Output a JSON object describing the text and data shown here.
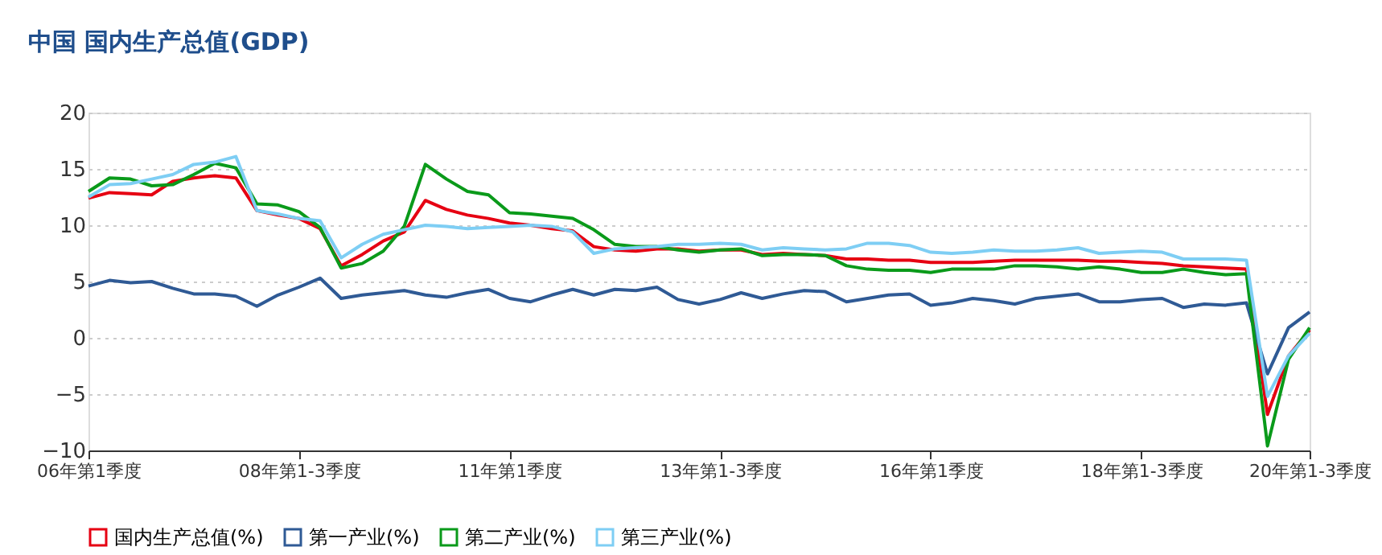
{
  "chart_data": {
    "type": "line",
    "title": "中国 国内生产总值(GDP)",
    "categories": [
      "06年第1季度",
      null,
      null,
      null,
      null,
      null,
      null,
      null,
      null,
      null,
      "08年第1-3季度",
      null,
      null,
      null,
      null,
      null,
      null,
      null,
      null,
      null,
      "11年第1季度",
      null,
      null,
      null,
      null,
      null,
      null,
      null,
      null,
      null,
      "13年第1-3季度",
      null,
      null,
      null,
      null,
      null,
      null,
      null,
      null,
      null,
      "16年第1季度",
      null,
      null,
      null,
      null,
      null,
      null,
      null,
      null,
      null,
      "18年第1-3季度",
      null,
      null,
      null,
      null,
      null,
      null,
      null,
      "20年第1-3季度"
    ],
    "series": [
      {
        "name": "国内生产总值(%)",
        "color": "#e60012",
        "values": [
          12.4,
          12.9,
          12.8,
          12.7,
          13.9,
          14.2,
          14.4,
          14.2,
          11.3,
          10.9,
          10.6,
          9.7,
          6.4,
          7.4,
          8.6,
          9.4,
          12.2,
          11.4,
          10.9,
          10.6,
          10.2,
          10.0,
          9.7,
          9.5,
          8.1,
          7.8,
          7.7,
          7.9,
          7.9,
          7.7,
          7.8,
          7.8,
          7.4,
          7.5,
          7.4,
          7.3,
          7.0,
          7.0,
          6.9,
          6.9,
          6.7,
          6.7,
          6.7,
          6.8,
          6.9,
          6.9,
          6.9,
          6.9,
          6.8,
          6.8,
          6.7,
          6.6,
          6.4,
          6.3,
          6.2,
          6.1,
          -6.8,
          -1.6,
          0.7
        ]
      },
      {
        "name": "第一产业(%)",
        "color": "#2f5a95",
        "values": [
          4.6,
          5.1,
          4.9,
          5.0,
          4.4,
          3.9,
          3.9,
          3.7,
          2.8,
          3.8,
          4.5,
          5.3,
          3.5,
          3.8,
          4.0,
          4.2,
          3.8,
          3.6,
          4.0,
          4.3,
          3.5,
          3.2,
          3.8,
          4.3,
          3.8,
          4.3,
          4.2,
          4.5,
          3.4,
          3.0,
          3.4,
          4.0,
          3.5,
          3.9,
          4.2,
          4.1,
          3.2,
          3.5,
          3.8,
          3.9,
          2.9,
          3.1,
          3.5,
          3.3,
          3.0,
          3.5,
          3.7,
          3.9,
          3.2,
          3.2,
          3.4,
          3.5,
          2.7,
          3.0,
          2.9,
          3.1,
          -3.2,
          0.9,
          2.3
        ]
      },
      {
        "name": "第二产业(%)",
        "color": "#0a9a1a",
        "values": [
          13.0,
          14.2,
          14.1,
          13.5,
          13.6,
          14.5,
          15.5,
          15.1,
          11.9,
          11.8,
          11.2,
          9.8,
          6.2,
          6.6,
          7.7,
          9.9,
          15.4,
          14.1,
          13.0,
          12.7,
          11.1,
          11.0,
          10.8,
          10.6,
          9.6,
          8.3,
          8.1,
          8.1,
          7.8,
          7.6,
          7.8,
          7.9,
          7.3,
          7.4,
          7.4,
          7.3,
          6.4,
          6.1,
          6.0,
          6.0,
          5.8,
          6.1,
          6.1,
          6.1,
          6.4,
          6.4,
          6.3,
          6.1,
          6.3,
          6.1,
          5.8,
          5.8,
          6.1,
          5.8,
          5.6,
          5.7,
          -9.6,
          -1.9,
          0.9
        ]
      },
      {
        "name": "第三产业(%)",
        "color": "#7ecef4",
        "values": [
          12.5,
          13.6,
          13.7,
          14.1,
          14.5,
          15.4,
          15.6,
          16.1,
          11.3,
          11.0,
          10.6,
          10.4,
          7.1,
          8.3,
          9.2,
          9.6,
          10.0,
          9.9,
          9.7,
          9.8,
          9.9,
          10.0,
          9.9,
          9.4,
          7.5,
          7.9,
          8.0,
          8.1,
          8.3,
          8.3,
          8.4,
          8.3,
          7.8,
          8.0,
          7.9,
          7.8,
          7.9,
          8.4,
          8.4,
          8.2,
          7.6,
          7.5,
          7.6,
          7.8,
          7.7,
          7.7,
          7.8,
          8.0,
          7.5,
          7.6,
          7.7,
          7.6,
          7.0,
          7.0,
          7.0,
          6.9,
          -5.2,
          -1.6,
          0.4
        ]
      }
    ],
    "ylim": [
      -10,
      20
    ],
    "yticks": [
      -10,
      -5,
      0,
      5,
      10,
      15,
      20
    ],
    "grid": "y",
    "legend": "bottom",
    "marker": "none",
    "line_style": "solid"
  }
}
